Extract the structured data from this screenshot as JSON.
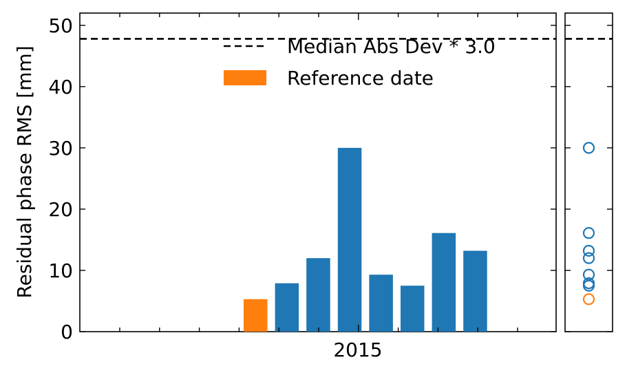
{
  "chart_data": {
    "type": "bar",
    "ylabel": "Residual phase RMS [mm]",
    "ylim": [
      0,
      52
    ],
    "yticks": [
      0,
      10,
      20,
      30,
      40,
      50
    ],
    "xtick_label": "2015",
    "legend": {
      "placement": "top-right",
      "entries": [
        {
          "label": "Median Abs Dev * 3.0",
          "kind": "dashed-line",
          "color": "#000000"
        },
        {
          "label": "Reference date",
          "kind": "bar",
          "color": "#ff7f0e"
        }
      ]
    },
    "threshold": 47.8,
    "bars": [
      {
        "value": 5.3,
        "reference": true
      },
      {
        "value": 7.9,
        "reference": false
      },
      {
        "value": 12.0,
        "reference": false
      },
      {
        "value": 30.0,
        "reference": false
      },
      {
        "value": 9.3,
        "reference": false
      },
      {
        "value": 7.5,
        "reference": false
      },
      {
        "value": 16.1,
        "reference": false
      },
      {
        "value": 13.2,
        "reference": false
      }
    ],
    "colors": {
      "bar": "#1f77b4",
      "reference": "#ff7f0e",
      "threshold": "#000000"
    }
  }
}
